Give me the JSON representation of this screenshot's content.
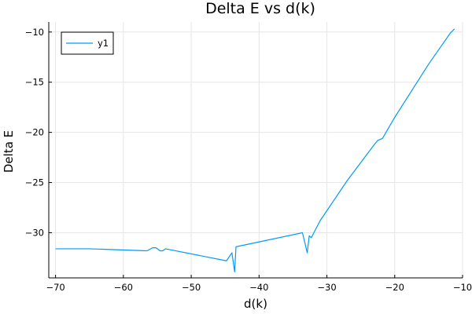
{
  "chart_data": {
    "type": "line",
    "title": "Delta E vs d(k)",
    "xlabel": "d(k)",
    "ylabel": "Delta E",
    "xlim": [
      -71,
      -10
    ],
    "ylim": [
      -34.5,
      -9
    ],
    "xticks": [
      -70,
      -60,
      -50,
      -40,
      -30,
      -20,
      -10
    ],
    "yticks": [
      -30,
      -25,
      -20,
      -15,
      -10
    ],
    "xtick_labels": [
      "−70",
      "−60",
      "−50",
      "−40",
      "−30",
      "−20",
      "−10"
    ],
    "ytick_labels": [
      "−30",
      "−25",
      "−20",
      "−15",
      "−10"
    ],
    "grid": true,
    "legend_position": "top-left",
    "series": [
      {
        "name": "y1",
        "color": "#009af9",
        "x": [
          -70,
          -65,
          -56.5,
          -55.7,
          -55.2,
          -54.6,
          -54.2,
          -53.8,
          -44.8,
          -44.0,
          -43.6,
          -43.4,
          -33.6,
          -32.9,
          -32.6,
          -32.3,
          -32.0,
          -31.0,
          -27.0,
          -23.0,
          -22.5,
          -21.8,
          -20.0,
          -15.0,
          -11.8,
          -11.2
        ],
        "y": [
          -31.6,
          -31.6,
          -31.8,
          -31.5,
          -31.5,
          -31.8,
          -31.8,
          -31.6,
          -32.8,
          -32.0,
          -33.9,
          -31.4,
          -30.0,
          -32.0,
          -30.3,
          -30.5,
          -30.1,
          -28.8,
          -24.8,
          -21.2,
          -20.8,
          -20.6,
          -18.5,
          -13.2,
          -10.1,
          -9.7
        ]
      }
    ]
  }
}
